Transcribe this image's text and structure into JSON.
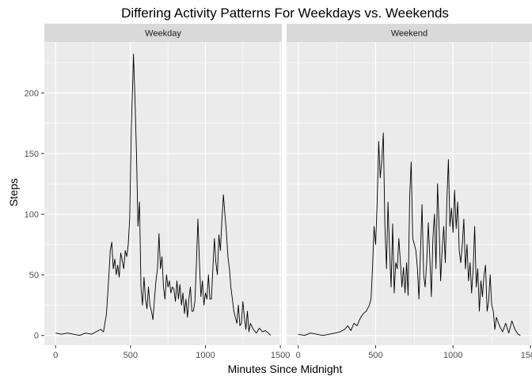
{
  "chart_data": {
    "type": "line",
    "title": "Differing Activity Patterns For Weekdays vs. Weekends",
    "xlabel": "Minutes Since Midnight",
    "ylabel": "Steps",
    "xlim": [
      -75,
      1510
    ],
    "ylim": [
      -8,
      242
    ],
    "x_ticks": [
      0,
      500,
      1000,
      1500
    ],
    "x_tick_labels": [
      "0",
      "500",
      "1000",
      "1500"
    ],
    "y_ticks": [
      0,
      50,
      100,
      150,
      200
    ],
    "y_tick_labels": [
      "0",
      "50",
      "100",
      "150",
      "200"
    ],
    "grid": true,
    "line_color": "#000000",
    "panel_background": "#ebebeb",
    "strip_background": "#d9d9d9",
    "panels": [
      {
        "name": "Weekday",
        "x": [
          0,
          40,
          80,
          120,
          160,
          200,
          240,
          270,
          300,
          320,
          340,
          355,
          365,
          375,
          385,
          395,
          405,
          415,
          425,
          435,
          445,
          455,
          465,
          475,
          485,
          495,
          505,
          515,
          520,
          530,
          540,
          550,
          560,
          570,
          580,
          590,
          600,
          610,
          620,
          630,
          640,
          650,
          660,
          670,
          680,
          690,
          700,
          710,
          720,
          730,
          740,
          750,
          760,
          770,
          780,
          790,
          800,
          810,
          820,
          830,
          840,
          850,
          860,
          870,
          880,
          890,
          900,
          910,
          920,
          930,
          940,
          950,
          960,
          970,
          980,
          990,
          1000,
          1010,
          1020,
          1030,
          1040,
          1050,
          1060,
          1070,
          1080,
          1090,
          1100,
          1110,
          1120,
          1130,
          1140,
          1150,
          1160,
          1170,
          1180,
          1190,
          1200,
          1210,
          1220,
          1230,
          1240,
          1250,
          1260,
          1270,
          1280,
          1290,
          1300,
          1320,
          1340,
          1360,
          1380,
          1400,
          1420,
          1435
        ],
        "values": [
          2,
          1,
          2,
          1,
          0,
          2,
          1,
          3,
          5,
          3,
          18,
          48,
          70,
          77,
          55,
          63,
          50,
          58,
          48,
          68,
          62,
          55,
          70,
          65,
          75,
          97,
          170,
          210,
          232,
          195,
          150,
          90,
          110,
          40,
          25,
          48,
          30,
          22,
          40,
          25,
          20,
          13,
          30,
          45,
          55,
          84,
          55,
          65,
          40,
          30,
          50,
          40,
          45,
          35,
          40,
          38,
          28,
          45,
          30,
          42,
          25,
          35,
          18,
          30,
          15,
          30,
          40,
          20,
          20,
          28,
          60,
          96,
          60,
          32,
          45,
          25,
          35,
          30,
          50,
          30,
          30,
          55,
          80,
          60,
          50,
          83,
          70,
          95,
          116,
          100,
          85,
          65,
          55,
          40,
          30,
          20,
          15,
          10,
          25,
          8,
          10,
          28,
          15,
          5,
          20,
          3,
          10,
          5,
          2,
          6,
          3,
          4,
          2,
          0
        ]
      },
      {
        "name": "Weekend",
        "x": [
          0,
          40,
          80,
          120,
          160,
          200,
          240,
          270,
          300,
          320,
          340,
          360,
          380,
          400,
          420,
          440,
          460,
          470,
          480,
          490,
          500,
          510,
          520,
          530,
          540,
          550,
          560,
          570,
          580,
          590,
          600,
          610,
          620,
          630,
          640,
          650,
          660,
          670,
          680,
          690,
          700,
          710,
          720,
          730,
          740,
          750,
          760,
          770,
          780,
          790,
          800,
          810,
          820,
          830,
          840,
          850,
          860,
          870,
          880,
          890,
          900,
          910,
          920,
          930,
          940,
          950,
          960,
          970,
          980,
          990,
          1000,
          1010,
          1020,
          1030,
          1040,
          1050,
          1060,
          1070,
          1080,
          1090,
          1100,
          1110,
          1120,
          1130,
          1140,
          1150,
          1160,
          1170,
          1180,
          1190,
          1200,
          1210,
          1220,
          1230,
          1240,
          1250,
          1260,
          1270,
          1280,
          1300,
          1320,
          1340,
          1360,
          1380,
          1400,
          1420,
          1435
        ],
        "values": [
          1,
          0,
          2,
          1,
          0,
          1,
          2,
          3,
          5,
          8,
          4,
          10,
          8,
          14,
          18,
          20,
          25,
          30,
          55,
          90,
          75,
          110,
          160,
          130,
          145,
          167,
          90,
          55,
          110,
          70,
          40,
          92,
          35,
          60,
          55,
          80,
          60,
          40,
          56,
          35,
          60,
          33,
          115,
          143,
          80,
          75,
          70,
          55,
          30,
          70,
          108,
          50,
          40,
          60,
          93,
          64,
          32,
          80,
          100,
          55,
          125,
          90,
          45,
          72,
          90,
          60,
          110,
          145,
          90,
          105,
          85,
          120,
          88,
          110,
          70,
          60,
          75,
          96,
          55,
          75,
          45,
          60,
          35,
          55,
          90,
          40,
          55,
          20,
          45,
          32,
          50,
          58,
          20,
          28,
          50,
          25,
          20,
          5,
          15,
          8,
          3,
          10,
          2,
          12,
          5,
          1,
          0
        ]
      }
    ]
  }
}
